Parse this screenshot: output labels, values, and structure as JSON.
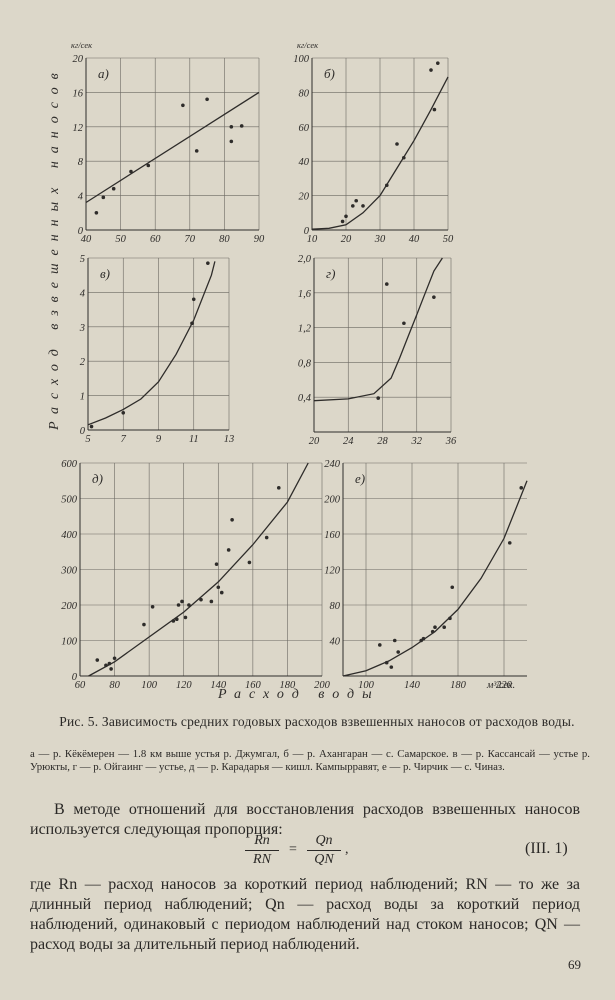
{
  "figure": {
    "y_axis_label": "Расход взвешенных наносов",
    "x_axis_label": "Расход воды",
    "caption_title": "Рис. 5. Зависимость средних годовых расходов взвешенных наносов от расходов воды.",
    "caption_legend": "а — р. Кёкёмерен — 1.8 км выше устья р. Джумгал, б — р. Ахангаран — с. Самарское. в — р. Кассансай — устье р. Урюкты, г — р. Ойгаинг — устье, д — р. Карадарья — кишл. Кампырравят, е — р. Чирчик — с. Чиназ."
  },
  "body": {
    "paragraph1": "В методе отношений для восстановления расходов взвешенных наносов используется следующая пропорция:",
    "formula_lhs_num": "Rn",
    "formula_lhs_den": "RN",
    "formula_rhs_num": "Qn",
    "formula_rhs_den": "QN",
    "formula_number": "(III. 1)",
    "paragraph2": "где Rn — расход наносов за короткий период наблюдений; RN — то же за длинный период наблюдений; Qn — расход воды за короткий период наблюдений, одинаковый с периодом наблюдений над стоком наносов; QN — расход воды за длительный период наблюдений."
  },
  "page_number": "69",
  "chart_data": [
    {
      "panel": "а)",
      "type": "scatter",
      "unit_label": "кг/сек",
      "xlim": [
        40,
        90
      ],
      "ylim": [
        0,
        20
      ],
      "x_ticks": [
        40,
        50,
        60,
        70,
        80,
        90
      ],
      "y_ticks": [
        0,
        4,
        8,
        12,
        16,
        20
      ],
      "points": [
        [
          43,
          2
        ],
        [
          45,
          3.8
        ],
        [
          48,
          4.8
        ],
        [
          53,
          6.8
        ],
        [
          58,
          7.5
        ],
        [
          68,
          14.5
        ],
        [
          72,
          9.2
        ],
        [
          75,
          15.2
        ],
        [
          82,
          12
        ],
        [
          82,
          10.3
        ],
        [
          85,
          12.1
        ]
      ],
      "curve": [
        [
          40,
          3.2
        ],
        [
          90,
          16
        ]
      ]
    },
    {
      "panel": "б)",
      "type": "scatter",
      "unit_label": "кг/сек",
      "xlim": [
        10,
        50
      ],
      "ylim": [
        0,
        100
      ],
      "x_ticks": [
        10,
        20,
        30,
        40,
        50
      ],
      "y_ticks": [
        0,
        20,
        40,
        60,
        80,
        100
      ],
      "points": [
        [
          19,
          5
        ],
        [
          20,
          8
        ],
        [
          22,
          14
        ],
        [
          23,
          17
        ],
        [
          25,
          14
        ],
        [
          32,
          26
        ],
        [
          35,
          50
        ],
        [
          37,
          42
        ],
        [
          45,
          93
        ],
        [
          46,
          70
        ],
        [
          47,
          97
        ]
      ],
      "curve": [
        [
          10,
          0.5
        ],
        [
          15,
          1
        ],
        [
          20,
          3
        ],
        [
          25,
          10
        ],
        [
          30,
          20
        ],
        [
          35,
          36
        ],
        [
          40,
          52
        ],
        [
          45,
          70
        ],
        [
          50,
          89
        ]
      ]
    },
    {
      "panel": "в)",
      "type": "scatter",
      "xlim": [
        5,
        13
      ],
      "ylim": [
        0,
        5
      ],
      "x_ticks": [
        5,
        7,
        9,
        11,
        13
      ],
      "y_ticks": [
        0,
        1,
        2,
        3,
        4,
        5
      ],
      "points": [
        [
          5.2,
          0.1
        ],
        [
          7,
          0.5
        ],
        [
          10.9,
          3.1
        ],
        [
          11,
          3.8
        ],
        [
          11.8,
          4.85
        ]
      ],
      "curve": [
        [
          5,
          0.15
        ],
        [
          6,
          0.35
        ],
        [
          7,
          0.6
        ],
        [
          8,
          0.9
        ],
        [
          9,
          1.4
        ],
        [
          10,
          2.2
        ],
        [
          11,
          3.2
        ],
        [
          12,
          4.5
        ],
        [
          12.2,
          4.9
        ]
      ]
    },
    {
      "panel": "г)",
      "type": "scatter",
      "xlim": [
        20,
        36
      ],
      "ylim": [
        0,
        2
      ],
      "x_ticks": [
        20,
        24,
        28,
        32,
        36
      ],
      "y_ticks": [
        0.4,
        0.8,
        1.2,
        1.6,
        2.0
      ],
      "y_tick_labels": [
        "0,4",
        "0,8",
        "1,2",
        "1,6",
        "2,0"
      ],
      "points": [
        [
          27.5,
          0.39
        ],
        [
          28.5,
          1.7
        ],
        [
          30.5,
          1.25
        ],
        [
          34,
          1.55
        ]
      ],
      "curve": [
        [
          20,
          0.36
        ],
        [
          24,
          0.38
        ],
        [
          27,
          0.44
        ],
        [
          29,
          0.62
        ],
        [
          30,
          0.85
        ],
        [
          31,
          1.1
        ],
        [
          32,
          1.35
        ],
        [
          33,
          1.6
        ],
        [
          34,
          1.85
        ],
        [
          35,
          2.0
        ]
      ]
    },
    {
      "panel": "д)",
      "type": "scatter",
      "xlim": [
        60,
        200
      ],
      "ylim": [
        0,
        600
      ],
      "x_ticks": [
        60,
        80,
        100,
        120,
        140,
        160,
        180,
        200
      ],
      "y_ticks": [
        0,
        100,
        200,
        300,
        400,
        500,
        600
      ],
      "points": [
        [
          70,
          45
        ],
        [
          75,
          30
        ],
        [
          77,
          35
        ],
        [
          78,
          20
        ],
        [
          80,
          50
        ],
        [
          97,
          145
        ],
        [
          102,
          195
        ],
        [
          114,
          155
        ],
        [
          116,
          160
        ],
        [
          117,
          200
        ],
        [
          119,
          210
        ],
        [
          121,
          165
        ],
        [
          123,
          200
        ],
        [
          130,
          215
        ],
        [
          136,
          210
        ],
        [
          139,
          315
        ],
        [
          140,
          250
        ],
        [
          142,
          235
        ],
        [
          146,
          355
        ],
        [
          148,
          440
        ],
        [
          158,
          320
        ],
        [
          168,
          390
        ],
        [
          175,
          530
        ]
      ],
      "curve": [
        [
          65,
          0
        ],
        [
          80,
          40
        ],
        [
          100,
          110
        ],
        [
          120,
          180
        ],
        [
          140,
          265
        ],
        [
          160,
          370
        ],
        [
          180,
          490
        ],
        [
          192,
          600
        ]
      ]
    },
    {
      "panel": "е)",
      "type": "scatter",
      "x_unit_label": "м³/сек.",
      "xlim": [
        80,
        240
      ],
      "ylim": [
        0,
        240
      ],
      "x_ticks": [
        100,
        140,
        180,
        220
      ],
      "y_ticks": [
        40,
        80,
        120,
        160,
        200,
        240
      ],
      "points": [
        [
          112,
          35
        ],
        [
          118,
          15
        ],
        [
          122,
          10
        ],
        [
          125,
          40
        ],
        [
          128,
          27
        ],
        [
          148,
          40
        ],
        [
          150,
          42
        ],
        [
          158,
          50
        ],
        [
          160,
          55
        ],
        [
          168,
          55
        ],
        [
          173,
          65
        ],
        [
          175,
          100
        ],
        [
          225,
          150
        ],
        [
          235,
          212
        ]
      ],
      "curve": [
        [
          80,
          0
        ],
        [
          100,
          6
        ],
        [
          120,
          17
        ],
        [
          140,
          32
        ],
        [
          160,
          50
        ],
        [
          180,
          75
        ],
        [
          200,
          110
        ],
        [
          220,
          155
        ],
        [
          240,
          220
        ]
      ]
    }
  ]
}
